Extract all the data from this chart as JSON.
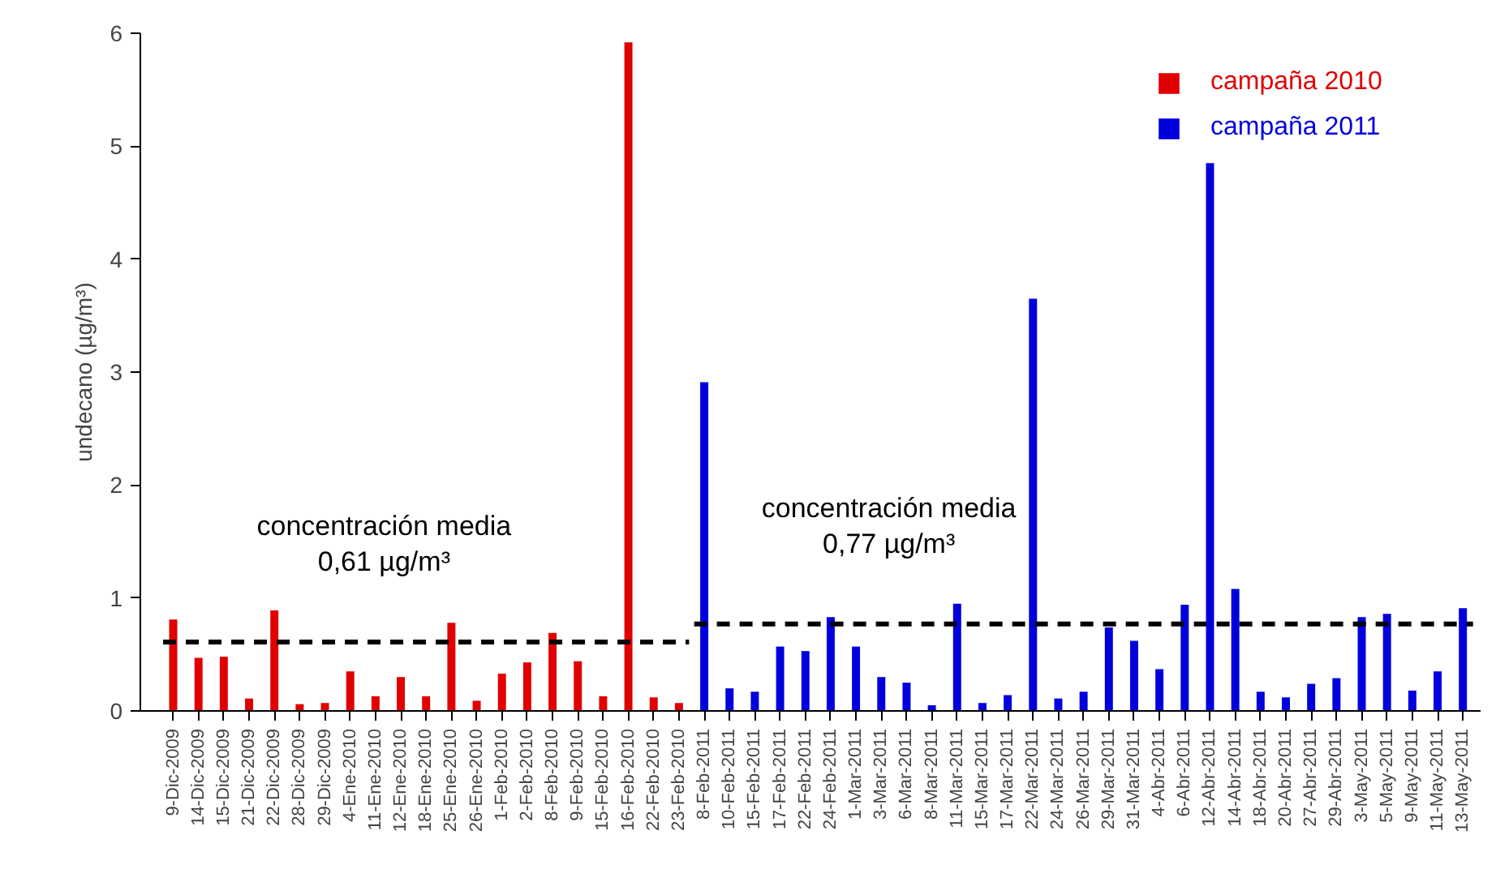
{
  "chart_data": {
    "type": "bar",
    "ylabel": "undecano (µg/m³)",
    "categories": [
      "9-Dic-2009",
      "14-Dic-2009",
      "15-Dic-2009",
      "21-Dic-2009",
      "22-Dic-2009",
      "28-Dic-2009",
      "29-Dic-2009",
      "4-Ene-2010",
      "11-Ene-2010",
      "12-Ene-2010",
      "18-Ene-2010",
      "25-Ene-2010",
      "26-Ene-2010",
      "1-Feb-2010",
      "2-Feb-2010",
      "8-Feb-2010",
      "9-Feb-2010",
      "15-Feb-2010",
      "16-Feb-2010",
      "22-Feb-2010",
      "23-Feb-2010",
      "8-Feb-2011",
      "10-Feb-2011",
      "15-Feb-2011",
      "17-Feb-2011",
      "22-Feb-2011",
      "24-Feb-2011",
      "1-Mar-2011",
      "3-Mar-2011",
      "6-Mar-2011",
      "8-Mar-2011",
      "11-Mar-2011",
      "15-Mar-2011",
      "17-Mar-2011",
      "22-Mar-2011",
      "24-Mar-2011",
      "26-Mar-2011",
      "29-Mar-2011",
      "31-Mar-2011",
      "4-Abr-2011",
      "6-Abr-2011",
      "12-Abr-2011",
      "14-Abr-2011",
      "18-Abr-2011",
      "20-Abr-2011",
      "27-Abr-2011",
      "29-Abr-2011",
      "3-May-2011",
      "5-May-2011",
      "9-May-2011",
      "11-May-2011",
      "13-May-2011"
    ],
    "series": [
      {
        "name": "campaña 2010",
        "color": "#e00000",
        "values": [
          0.81,
          0.47,
          0.48,
          0.11,
          0.89,
          0.06,
          0.07,
          0.35,
          0.13,
          0.3,
          0.13,
          0.78,
          0.09,
          0.33,
          0.43,
          0.69,
          0.44,
          0.13,
          5.92,
          0.12,
          0.07,
          null,
          null,
          null,
          null,
          null,
          null,
          null,
          null,
          null,
          null,
          null,
          null,
          null,
          null,
          null,
          null,
          null,
          null,
          null,
          null,
          null,
          null,
          null,
          null,
          null,
          null,
          null,
          null,
          null,
          null,
          null
        ]
      },
      {
        "name": "campaña 2011",
        "color": "#0000dd",
        "values": [
          null,
          null,
          null,
          null,
          null,
          null,
          null,
          null,
          null,
          null,
          null,
          null,
          null,
          null,
          null,
          null,
          null,
          null,
          null,
          null,
          null,
          2.91,
          0.2,
          0.17,
          0.57,
          0.53,
          0.83,
          0.57,
          0.3,
          0.25,
          0.05,
          0.95,
          0.07,
          0.14,
          3.65,
          0.11,
          0.17,
          0.74,
          0.62,
          0.37,
          0.94,
          4.85,
          1.08,
          0.17,
          0.12,
          0.24,
          0.29,
          0.83,
          0.86,
          0.18,
          0.35,
          0.91
        ]
      }
    ],
    "ylim": [
      0,
      6
    ],
    "yticks": [
      0,
      1,
      2,
      3,
      4,
      5,
      6
    ],
    "ref_lines": [
      {
        "axis": "y",
        "value": 0.61,
        "label": "concentración media\n0,61 µg/m³",
        "color": "#000000",
        "line_style": "dashed"
      },
      {
        "axis": "y",
        "value": 0.77,
        "label": "concentración media\n0,77 µg/m³",
        "color": "#000000",
        "line_style": "dashed"
      }
    ],
    "grid": false,
    "legend": "top right"
  }
}
